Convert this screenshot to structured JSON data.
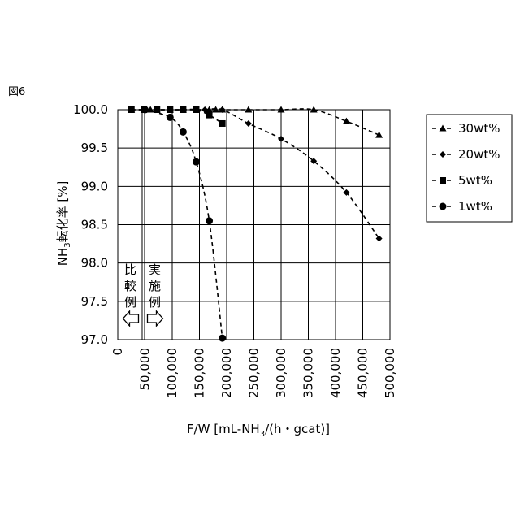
{
  "figure_label": "図6",
  "chart_data": {
    "type": "scatter",
    "xlabel_main": "F/W [mL-NH",
    "xlabel_sub": "3",
    "xlabel_tail": "/(h・gcat)]",
    "ylabel_main": "NH",
    "ylabel_sub": "3",
    "ylabel_tail": "転化率 [%]",
    "xlim": [
      0,
      500000
    ],
    "ylim": [
      97.0,
      100.0
    ],
    "x_ticks": [
      "50,000",
      "100,000",
      "150,000",
      "200,000",
      "250,000",
      "300,000",
      "350,000",
      "400,000",
      "450,000",
      "500,000"
    ],
    "x_tick_values": [
      50000,
      100000,
      150000,
      200000,
      250000,
      300000,
      350000,
      400000,
      450000,
      500000
    ],
    "x_zero_label": "0",
    "y_ticks": [
      "97.0",
      "97.5",
      "98.0",
      "98.5",
      "99.0",
      "99.5",
      "100.0"
    ],
    "y_tick_values": [
      97.0,
      97.5,
      98.0,
      98.5,
      99.0,
      99.5,
      100.0
    ],
    "grid": true,
    "divider_x": 47000,
    "comparative_label": [
      "比",
      "較",
      "例"
    ],
    "example_label": [
      "実",
      "施",
      "例"
    ],
    "legend_position": "right",
    "series": [
      {
        "name": "30wt%",
        "marker": "triangle",
        "x": [
          25000,
          50000,
          60000,
          72000,
          96000,
          120000,
          144000,
          168000,
          180000,
          192000,
          240000,
          300000,
          360000,
          420000,
          480000
        ],
        "y": [
          100.0,
          100.0,
          100.0,
          100.0,
          100.0,
          100.0,
          100.0,
          100.0,
          100.0,
          100.0,
          100.0,
          100.0,
          100.0,
          99.85,
          99.67
        ]
      },
      {
        "name": "20wt%",
        "marker": "diamond",
        "x": [
          25000,
          48000,
          72000,
          96000,
          120000,
          144000,
          160000,
          192000,
          240000,
          300000,
          360000,
          420000,
          480000
        ],
        "y": [
          100.0,
          100.0,
          100.0,
          100.0,
          100.0,
          100.0,
          100.0,
          100.0,
          99.82,
          99.62,
          99.33,
          98.92,
          98.32
        ]
      },
      {
        "name": "5wt%",
        "marker": "square",
        "x": [
          25000,
          48000,
          72000,
          96000,
          120000,
          144000,
          168000,
          192000
        ],
        "y": [
          100.0,
          100.0,
          100.0,
          100.0,
          100.0,
          100.0,
          99.93,
          99.82
        ]
      },
      {
        "name": "1wt%",
        "marker": "circle",
        "x": [
          50000,
          96000,
          120000,
          144000,
          168000,
          192000
        ],
        "y": [
          100.0,
          99.9,
          99.71,
          99.32,
          98.55,
          97.02
        ]
      }
    ]
  }
}
